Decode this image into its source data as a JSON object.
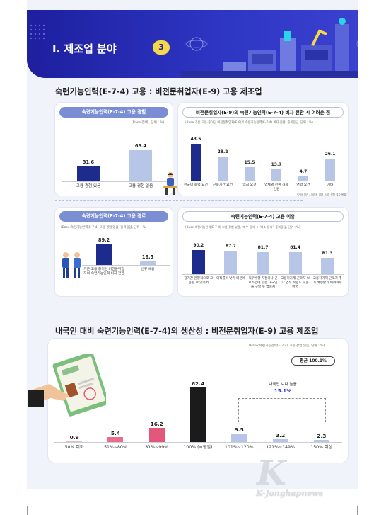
{
  "header": {
    "section_title": "Ⅰ. 제조업 분야",
    "section_number": "3"
  },
  "section1": {
    "title": "숙련기능인력(E-7-4) 고용 : 비전문취업자(E-9) 고용 제조업",
    "panel_a": {
      "title": "숙련기능인력(E-7-4) 고용 경험",
      "note": "(Base:전체 , 단위 : %)",
      "chart_data": {
        "type": "bar",
        "categories": [
          "고용 경험 있음",
          "고용 경험 없음"
        ],
        "values": [
          31.6,
          68.4
        ],
        "colors": [
          "#1d2b8c",
          "#b7c6e6"
        ]
      }
    },
    "panel_b": {
      "title": "비전문취업자(E-9)의 숙련기능인력(E-7-4) 비자 전환 시 어려운 점",
      "note": "(Base:기존 고용 중이던 비전문취업자(E-9)의 숙련기능인력(E-7-4) 비자 전환, 중복응답, 단위 : %)",
      "footnote": "*기타 의견 : 어려움 없음, 서류 신청 절차 복잡",
      "chart_data": {
        "type": "bar",
        "categories": [
          "한국어 능력 요건",
          "근속기간 요건",
          "임금 요건",
          "업체별 전환 허용 인원",
          "연령 요건",
          "기타"
        ],
        "values": [
          43.5,
          28.2,
          15.5,
          13.7,
          4.7,
          26.1
        ],
        "colors": [
          "#1d2b8c",
          "#b7c6e6",
          "#b7c6e6",
          "#b7c6e6",
          "#b7c6e6",
          "#b7c6e6"
        ]
      }
    },
    "panel_c": {
      "title": "숙련기능인력(E-7-4) 고용 경로",
      "note": "(Base:숙련기능인력(E-7-4) 고용 경험 있음, 중복응답, 단위 : %)",
      "chart_data": {
        "type": "bar",
        "categories": [
          "기존 고용 중이던 비전문취업자의 숙련기능인력 비자 전환",
          "신규 채용"
        ],
        "values": [
          89.2,
          16.5
        ],
        "colors": [
          "#1d2b8c",
          "#b7c6e6"
        ]
      }
    },
    "panel_d": {
      "title": "숙련기능인력(E-7-4) 고용 이유",
      "note": "(Base:숙련기능인력(E-7-4) 고용 경험 있음, '매우 동의' + '다소 동의', 중복응답, 단위 : %)",
      "chart_data": {
        "type": "bar",
        "categories": [
          "장기간 안정적으로 고용할 수 있어서",
          "이직률이 낮기 때문에",
          "직무수행 자질이나 근로조건에 맞는 내국인을 구할 수 없어서",
          "고용허가제 근로자 보다 업무 숙련도가 높아서",
          "고용허가제 근로자 추가 배정받기 어려워서"
        ],
        "values": [
          90.2,
          87.7,
          81.7,
          81.4,
          61.3
        ],
        "colors": [
          "#1d2b8c",
          "#b7c6e6",
          "#b7c6e6",
          "#b7c6e6",
          "#b7c6e6"
        ]
      }
    }
  },
  "section2": {
    "title": "내국인 대비 숙련기능인력(E-7-4)의 생산성 : 비전문취업자(E-9) 고용 제조업",
    "note": "(Base:숙련기능인력(E-7-4) 고용 경험 있음, 단위 : %)",
    "average_label": "평균 100.1%",
    "bracket_label": "내국인 보다 높음",
    "bracket_value": "15.1%",
    "chart_data": {
      "type": "bar",
      "categories": [
        "50% 이하",
        "51%~80%",
        "81%~99%",
        "100% (=동일)",
        "101%~120%",
        "121%~149%",
        "150% 이상"
      ],
      "values": [
        0.9,
        5.4,
        16.2,
        62.4,
        9.5,
        3.2,
        2.3
      ],
      "colors": [
        "#f3b7c5",
        "#e86d8c",
        "#e2577b",
        "#1b1b1b",
        "#b7c6e6",
        "#b7c6e6",
        "#b7c6e6"
      ]
    }
  },
  "watermark": {
    "mark": "K",
    "brand": "K-Jonghapnews"
  }
}
